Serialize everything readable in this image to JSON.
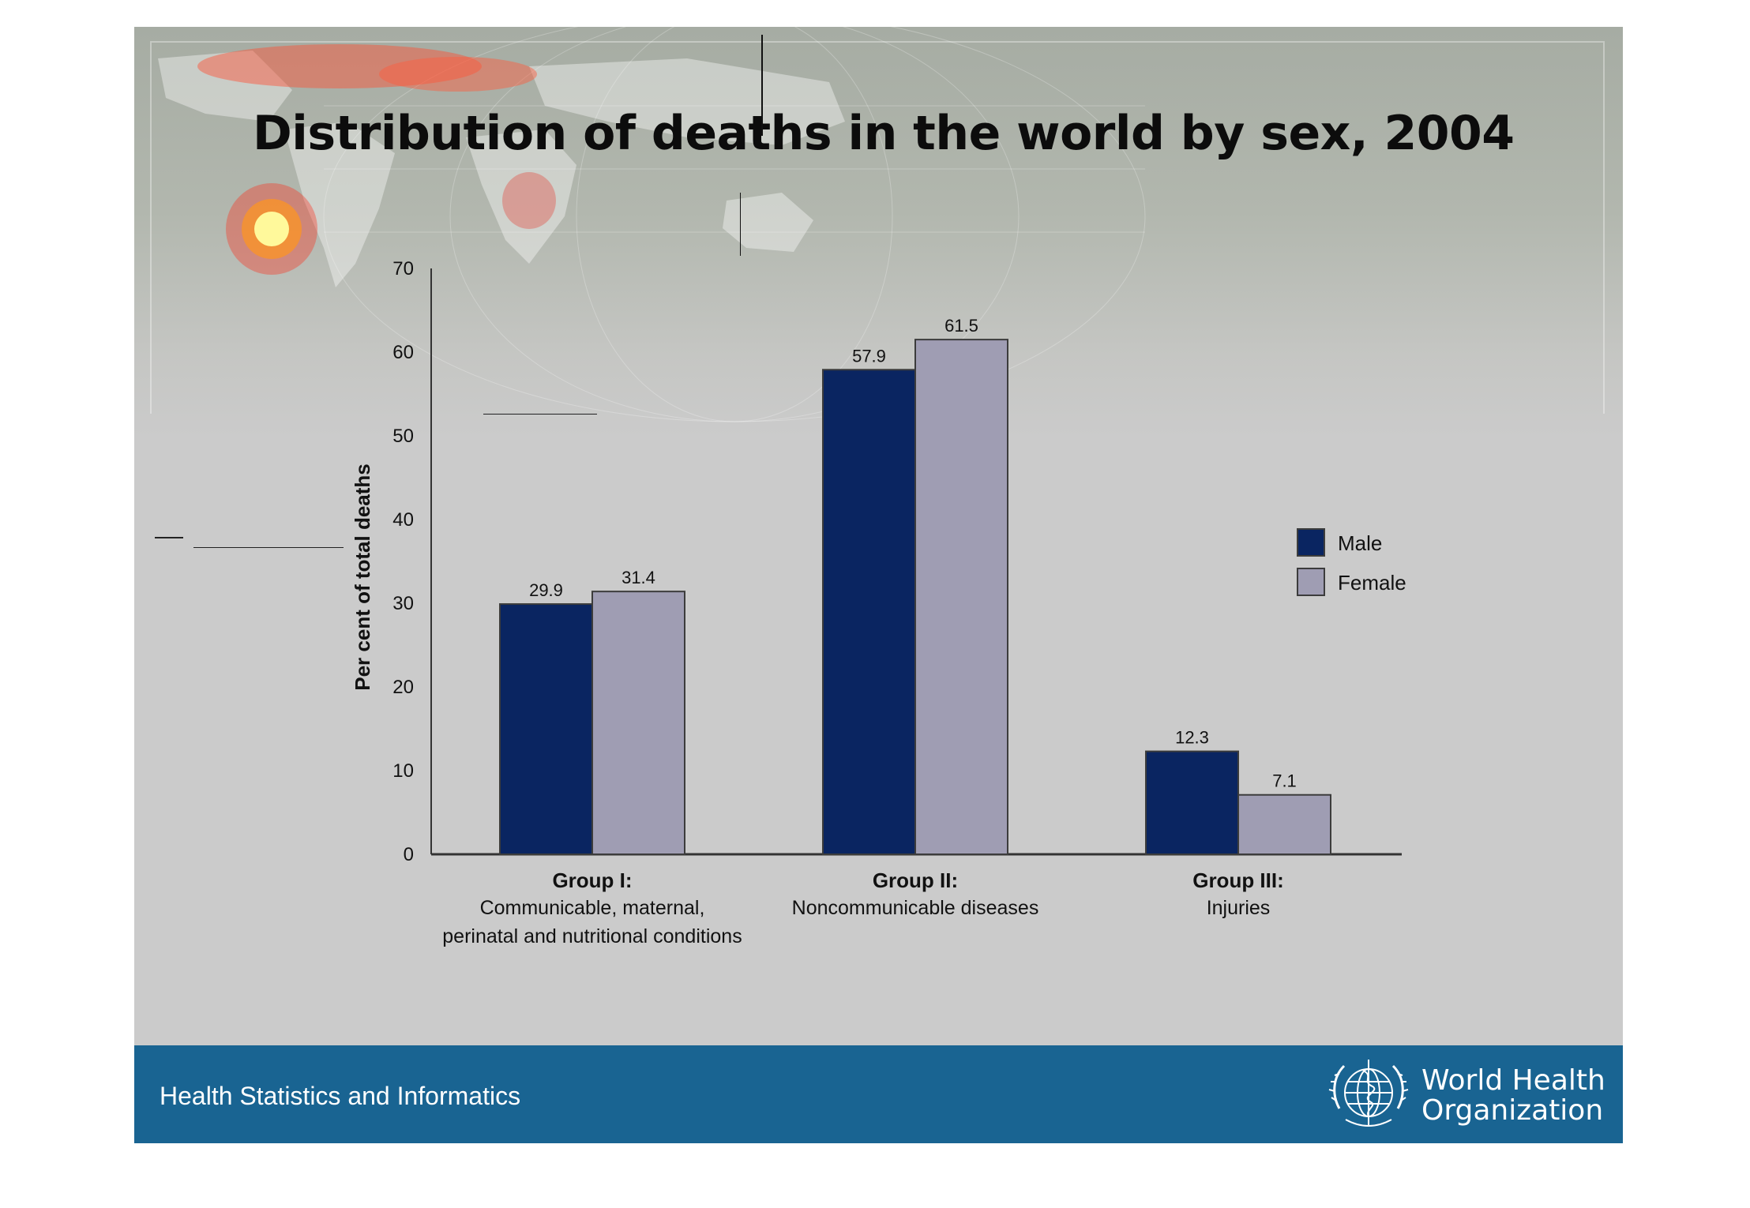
{
  "slide": {
    "title": "Distribution of deaths in the world by sex, 2004",
    "footer_text": "Health Statistics and Informatics",
    "org_name_line1": "World Health",
    "org_name_line2": "Organization",
    "footer_color": "#196492",
    "background_color": "#cbcbcb"
  },
  "chart_data": {
    "type": "bar",
    "title": "Distribution of deaths in the world by sex, 2004",
    "ylabel": "Per cent of total deaths",
    "xlabel": "",
    "ylim": [
      0,
      70
    ],
    "yticks": [
      0,
      10,
      20,
      30,
      40,
      50,
      60,
      70
    ],
    "categories": [
      {
        "group": "Group I:",
        "lines": [
          "Communicable, maternal,",
          "perinatal and nutritional conditions"
        ]
      },
      {
        "group": "Group II:",
        "lines": [
          "Noncommunicable diseases"
        ]
      },
      {
        "group": "Group III:",
        "lines": [
          "Injuries"
        ]
      }
    ],
    "series": [
      {
        "name": "Male",
        "color": "#0a2561",
        "values": [
          29.9,
          57.9,
          12.3
        ],
        "labels": [
          "29.9",
          "57.9",
          "12.3"
        ]
      },
      {
        "name": "Female",
        "color": "#9f9db3",
        "values": [
          31.4,
          61.5,
          7.1
        ],
        "labels": [
          "31.4",
          "61.5",
          "7.1"
        ]
      }
    ],
    "legend_position": "right",
    "grid": false
  }
}
